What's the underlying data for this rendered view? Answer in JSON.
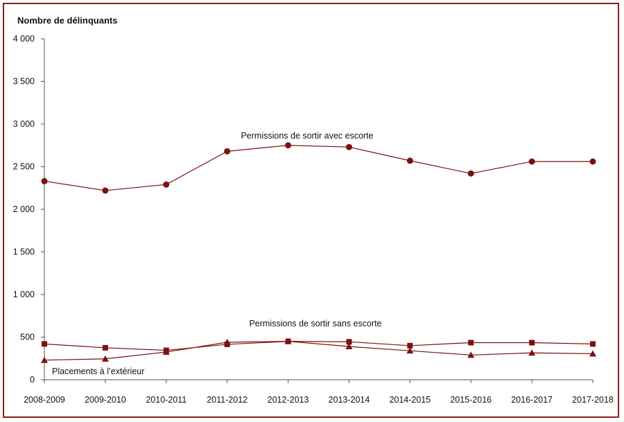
{
  "chart_data": {
    "type": "line",
    "title": "",
    "ylabel": "Nombre de délinquants",
    "xlabel": "",
    "ylim": [
      0,
      4000
    ],
    "yticks": [
      0,
      500,
      1000,
      1500,
      2000,
      2500,
      3000,
      3500,
      4000
    ],
    "ytick_labels": [
      "0",
      "500",
      "1 000",
      "1 500",
      "2 000",
      "2 500",
      "3 000",
      "3 500",
      "4 000"
    ],
    "categories": [
      "2008-2009",
      "2009-2010",
      "2010-2011",
      "2011-2012",
      "2012-2013",
      "2013-2014",
      "2014-2015",
      "2015-2016",
      "2016-2017",
      "2017-2018"
    ],
    "grid": false,
    "series": [
      {
        "name": "Permissions de sortir avec escorte",
        "marker": "circle",
        "color": "#7b1111",
        "values": [
          2330,
          2220,
          2290,
          2680,
          2750,
          2730,
          2570,
          2420,
          2560,
          2560
        ]
      },
      {
        "name": "Permissions de sortir sans escorte",
        "marker": "square",
        "color": "#7b1111",
        "values": [
          420,
          375,
          345,
          415,
          450,
          445,
          400,
          435,
          435,
          420
        ]
      },
      {
        "name": "Placements à l’extérieur",
        "marker": "triangle",
        "color": "#7b1111",
        "values": [
          230,
          245,
          325,
          440,
          450,
          390,
          340,
          290,
          315,
          305
        ]
      }
    ]
  },
  "colors": {
    "frame": "#8b1a1a",
    "series": "#7b1111",
    "axis": "#555555"
  }
}
